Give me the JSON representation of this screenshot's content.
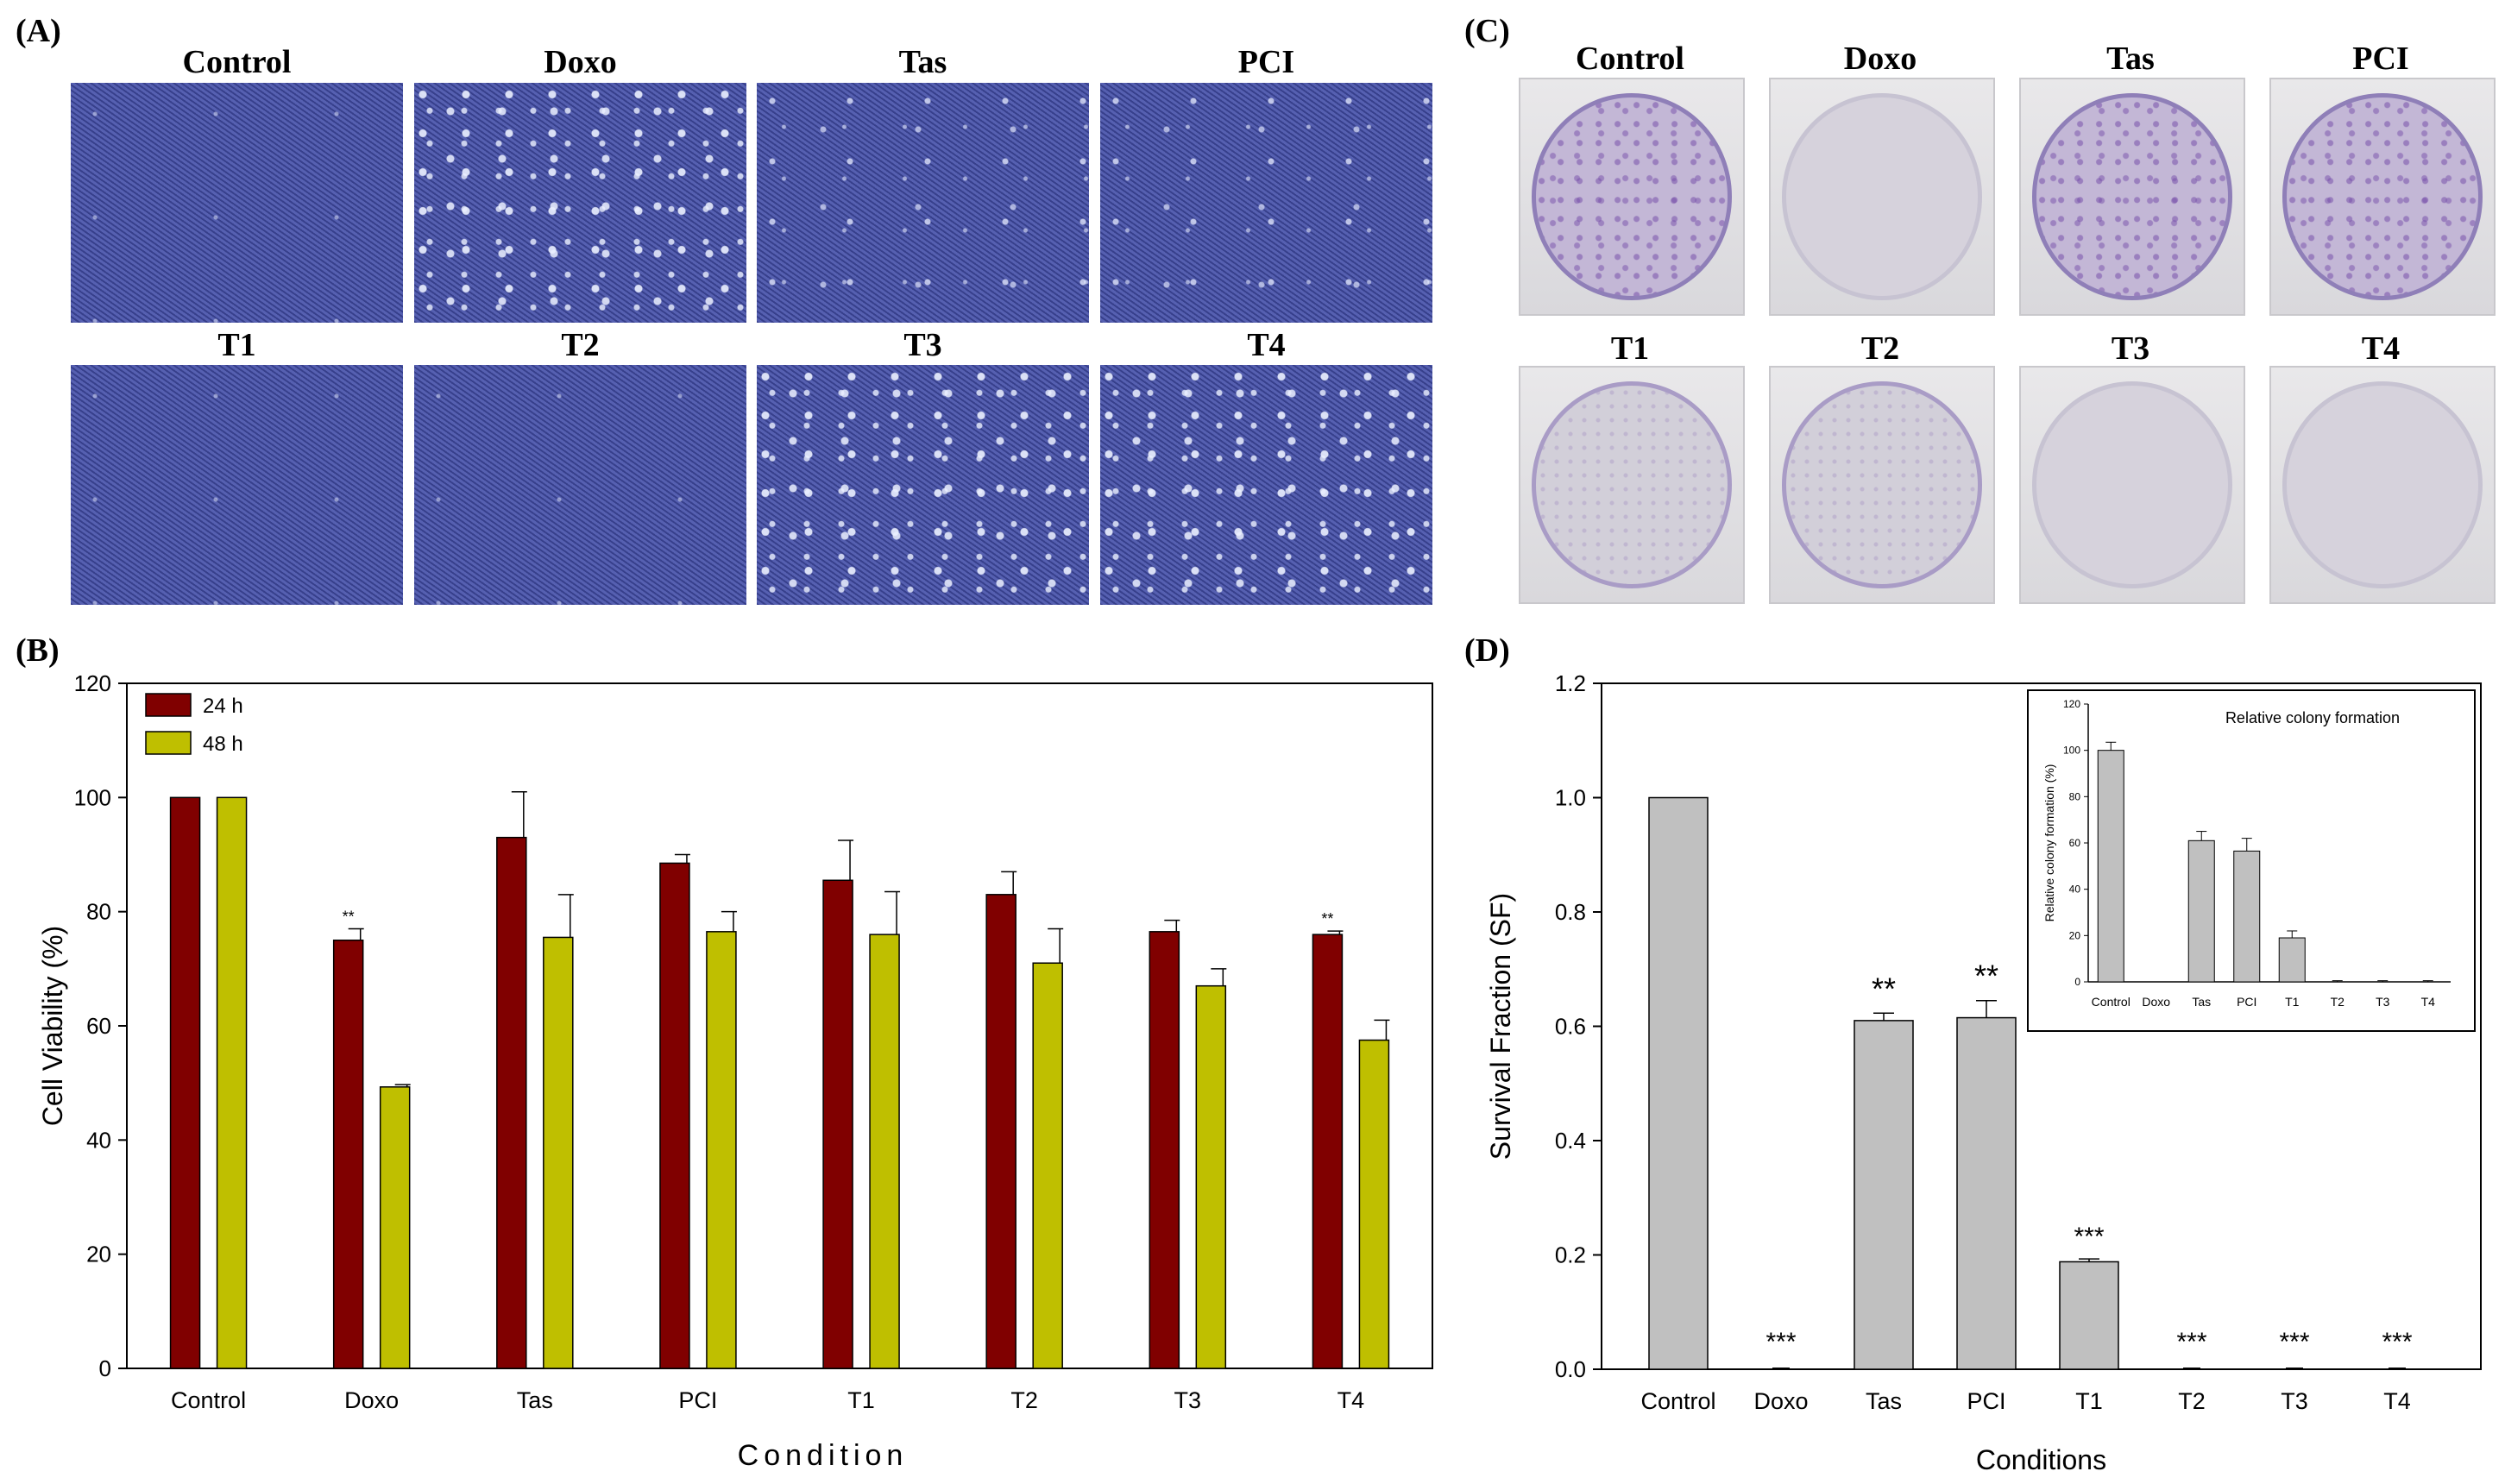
{
  "panels": {
    "A": {
      "letter": "(A)",
      "images": [
        {
          "label": "Control",
          "density": "light"
        },
        {
          "label": "Doxo",
          "density": "dense"
        },
        {
          "label": "Tas",
          "density": "normal"
        },
        {
          "label": "PCI",
          "density": "normal"
        },
        {
          "label": "T1",
          "density": "light"
        },
        {
          "label": "T2",
          "density": "light"
        },
        {
          "label": "T3",
          "density": "dense"
        },
        {
          "label": "T4",
          "density": "dense"
        }
      ]
    },
    "B": {
      "letter": "(B)"
    },
    "C": {
      "letter": "(C)",
      "wells": [
        {
          "label": "Control",
          "stain": "purple"
        },
        {
          "label": "Doxo",
          "stain": "none"
        },
        {
          "label": "Tas",
          "stain": "purple"
        },
        {
          "label": "PCI",
          "stain": "purple"
        },
        {
          "label": "T1",
          "stain": "faint"
        },
        {
          "label": "T2",
          "stain": "faint"
        },
        {
          "label": "T3",
          "stain": "none"
        },
        {
          "label": "T4",
          "stain": "none"
        }
      ]
    },
    "D": {
      "letter": "(D)"
    }
  },
  "chart_data": [
    {
      "id": "B",
      "type": "bar",
      "xlabel": "Condition",
      "ylabel": "Cell Viability (%)",
      "ylim": [
        0,
        120
      ],
      "yticks": [
        0,
        20,
        40,
        60,
        80,
        100,
        120
      ],
      "categories": [
        "Control",
        "Doxo",
        "Tas",
        "PCI",
        "T1",
        "T2",
        "T3",
        "T4"
      ],
      "legend_position": "top-left",
      "series": [
        {
          "name": "24 h",
          "color": "#800000",
          "values": [
            100,
            75,
            93,
            88.5,
            85.5,
            83,
            76.5,
            76
          ],
          "errors": [
            0,
            2,
            8,
            1.5,
            7,
            4,
            2,
            0.6
          ]
        },
        {
          "name": "48 h",
          "color": "#bfbf00",
          "values": [
            100,
            49.3,
            75.5,
            76.5,
            76,
            71,
            67,
            57.5
          ],
          "errors": [
            0,
            0.4,
            7.5,
            3.5,
            7.5,
            6,
            3,
            3.5
          ]
        }
      ],
      "annotations": [
        {
          "category": "Doxo",
          "series": "24 h",
          "text": "**"
        },
        {
          "category": "T4",
          "series": "24 h",
          "text": "**"
        }
      ]
    },
    {
      "id": "D",
      "type": "bar",
      "xlabel": "Conditions",
      "ylabel": "Survival Fraction (SF)",
      "ylim": [
        0,
        1.2
      ],
      "yticks": [
        "0.0",
        "0.2",
        "0.4",
        "0.6",
        "0.8",
        "1.0",
        "1.2"
      ],
      "categories": [
        "Control",
        "Doxo",
        "Tas",
        "PCI",
        "T1",
        "T2",
        "T3",
        "T4"
      ],
      "values": [
        1.0,
        0,
        0.61,
        0.615,
        0.188,
        0,
        0,
        0
      ],
      "errors": [
        0,
        0,
        0.013,
        0.03,
        0.005,
        0,
        0,
        0
      ],
      "color": "#c0c0c0",
      "significance": [
        "",
        "***",
        "**",
        "**",
        "***",
        "***",
        "***",
        "***"
      ]
    },
    {
      "id": "D-inset",
      "type": "bar",
      "title": "Relative colony formation",
      "ylabel": "Relative colony formation (%)",
      "ylim": [
        0,
        120
      ],
      "yticks": [
        0,
        20,
        40,
        60,
        80,
        100,
        120
      ],
      "categories": [
        "Control",
        "Doxo",
        "Tas",
        "PCI",
        "T1",
        "T2",
        "T3",
        "T4"
      ],
      "values": [
        100,
        0,
        61,
        56.5,
        19,
        0,
        0,
        0
      ],
      "errors": [
        3.5,
        0,
        4,
        5.5,
        3,
        0.5,
        0.5,
        0.5
      ],
      "color": "#c0c0c0"
    }
  ]
}
